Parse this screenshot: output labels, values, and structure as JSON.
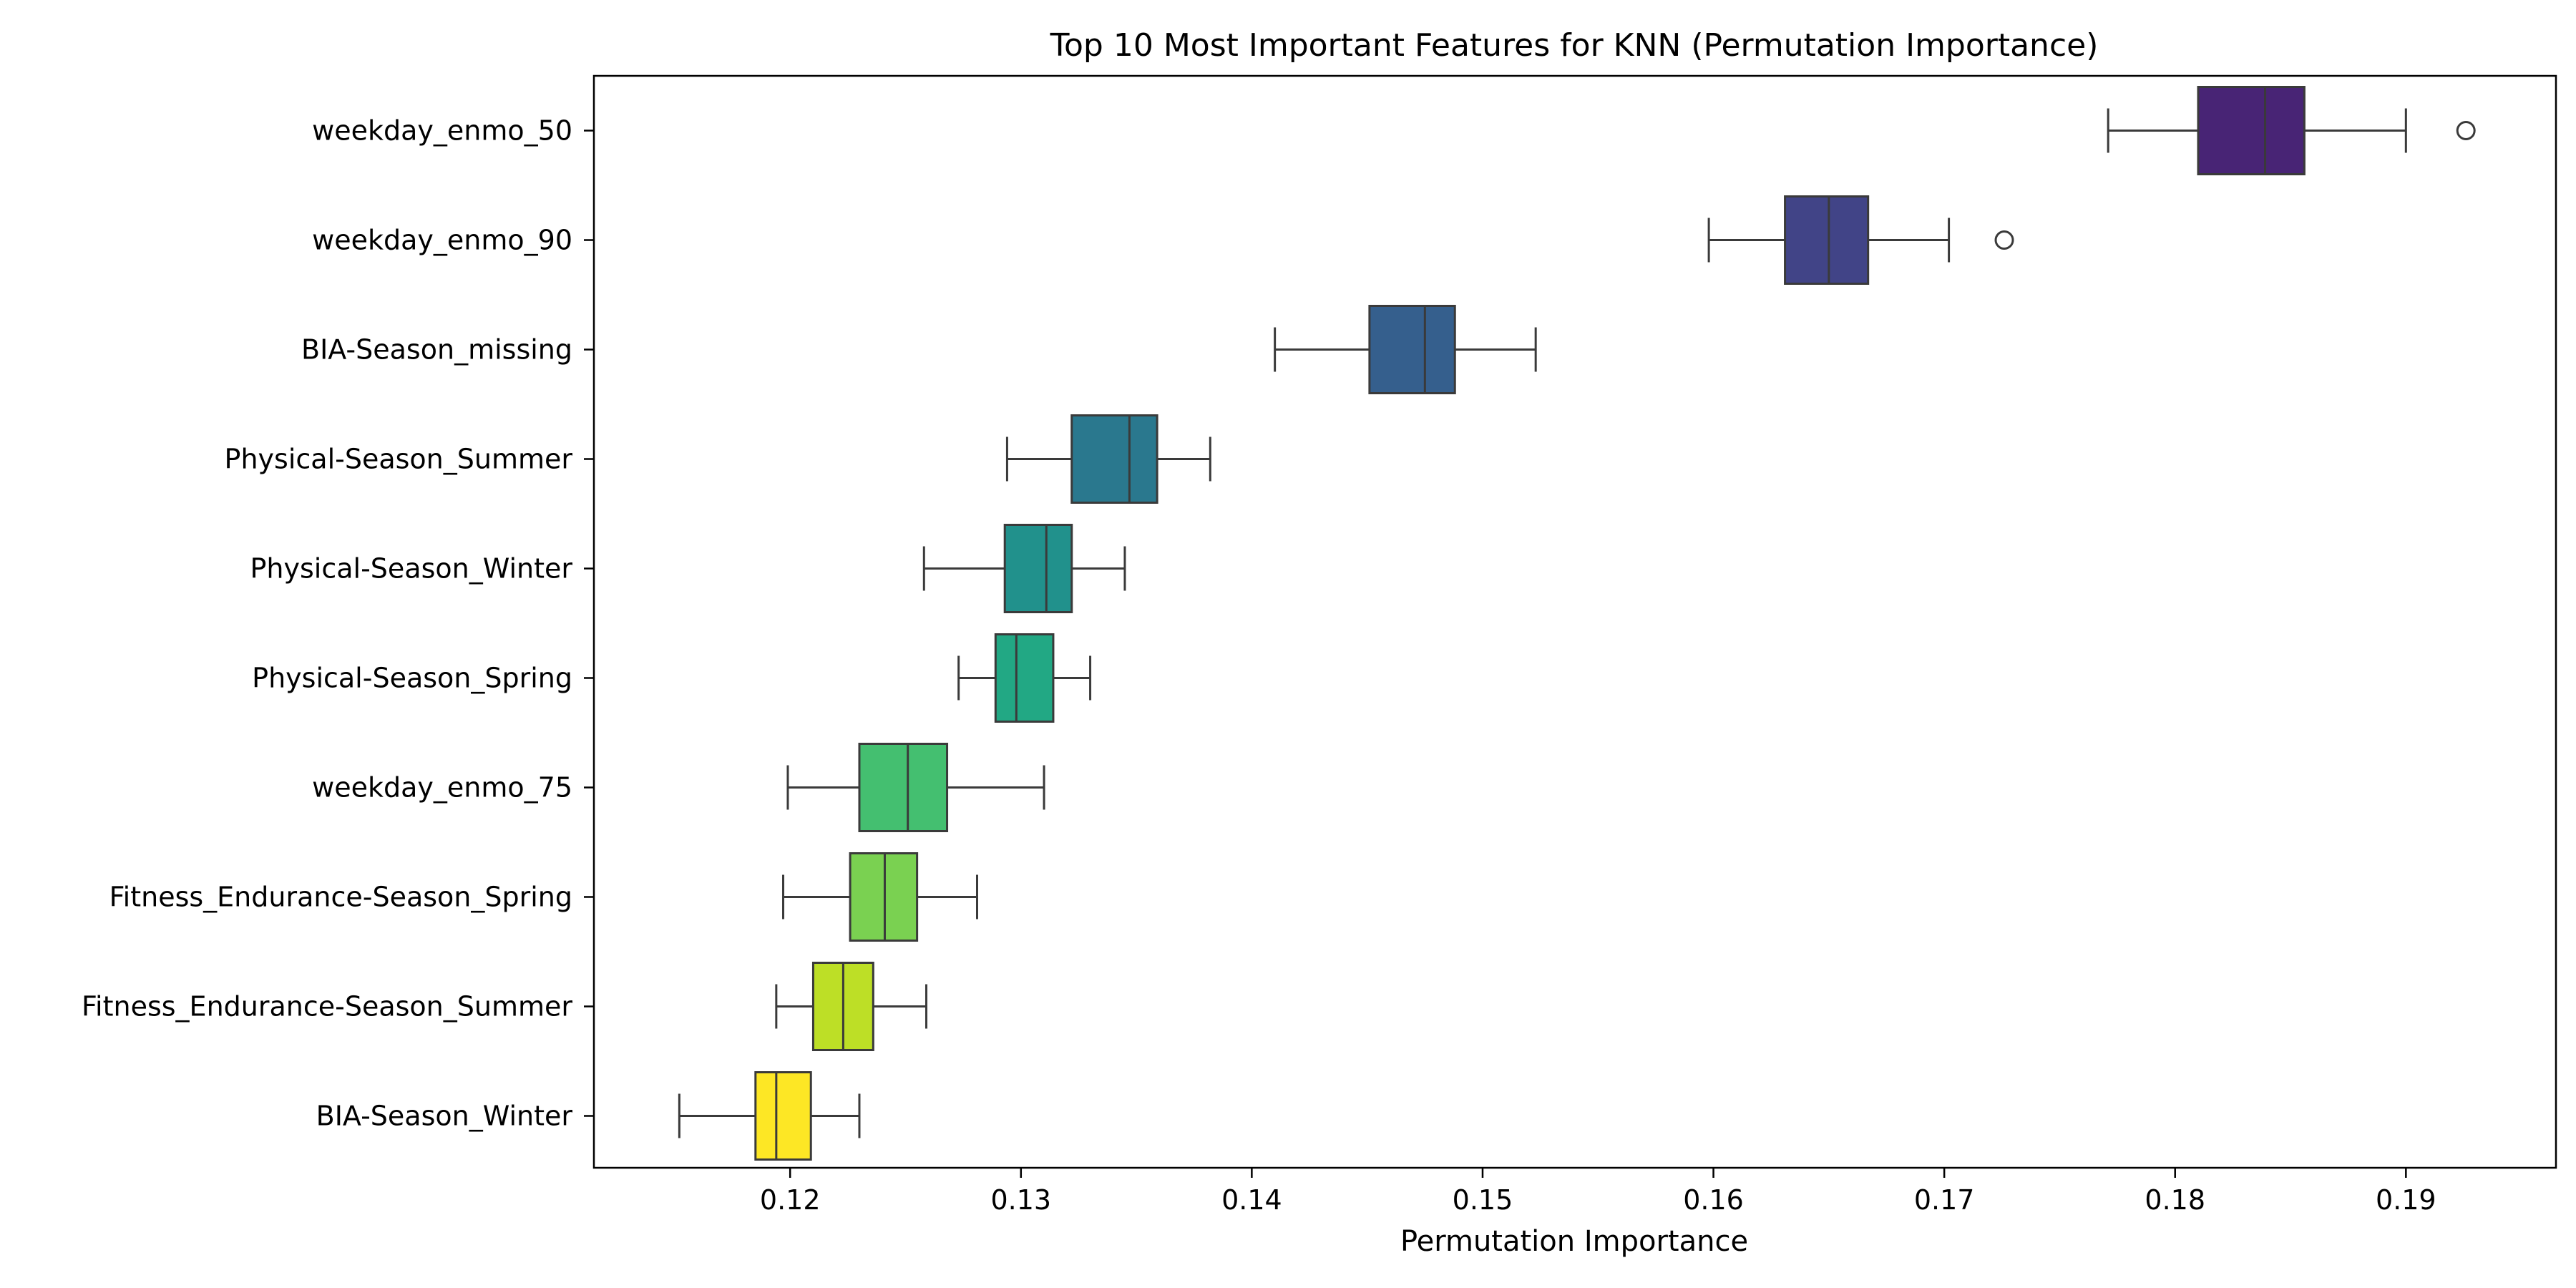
{
  "chart_data": {
    "type": "boxplot",
    "orientation": "horizontal",
    "title": "Top 10 Most Important Features for KNN (Permutation Importance)",
    "xlabel": "Permutation Importance",
    "ylabel": "",
    "xlim": [
      0.1115,
      0.1965
    ],
    "xticks": [
      0.12,
      0.13,
      0.14,
      0.15,
      0.16,
      0.17,
      0.18,
      0.19
    ],
    "xtick_labels": [
      "0.12",
      "0.13",
      "0.14",
      "0.15",
      "0.16",
      "0.17",
      "0.18",
      "0.19"
    ],
    "grid": false,
    "palette": "viridis",
    "features": [
      {
        "name": "weekday_enmo_50",
        "whisker_low": 0.1771,
        "q1": 0.181,
        "median": 0.1839,
        "q3": 0.1856,
        "whisker_high": 0.19,
        "outliers": [
          0.1926
        ],
        "color": "#482475"
      },
      {
        "name": "weekday_enmo_90",
        "whisker_low": 0.1598,
        "q1": 0.1631,
        "median": 0.165,
        "q3": 0.1667,
        "whisker_high": 0.1702,
        "outliers": [
          0.1726
        ],
        "color": "#414487"
      },
      {
        "name": "BIA-Season_missing",
        "whisker_low": 0.141,
        "q1": 0.1451,
        "median": 0.1475,
        "q3": 0.1488,
        "whisker_high": 0.1523,
        "outliers": [],
        "color": "#355f8d"
      },
      {
        "name": "Physical-Season_Summer",
        "whisker_low": 0.1294,
        "q1": 0.1322,
        "median": 0.1347,
        "q3": 0.1359,
        "whisker_high": 0.1382,
        "outliers": [],
        "color": "#2a788e"
      },
      {
        "name": "Physical-Season_Winter",
        "whisker_low": 0.1258,
        "q1": 0.1293,
        "median": 0.1311,
        "q3": 0.1322,
        "whisker_high": 0.1345,
        "outliers": [],
        "color": "#21918c"
      },
      {
        "name": "Physical-Season_Spring",
        "whisker_low": 0.1273,
        "q1": 0.1289,
        "median": 0.1298,
        "q3": 0.1314,
        "whisker_high": 0.133,
        "outliers": [],
        "color": "#22a884"
      },
      {
        "name": "weekday_enmo_75",
        "whisker_low": 0.1199,
        "q1": 0.123,
        "median": 0.1251,
        "q3": 0.1268,
        "whisker_high": 0.131,
        "outliers": [],
        "color": "#44bf70"
      },
      {
        "name": "Fitness_Endurance-Season_Spring",
        "whisker_low": 0.1197,
        "q1": 0.1226,
        "median": 0.1241,
        "q3": 0.1255,
        "whisker_high": 0.1281,
        "outliers": [],
        "color": "#7ad151"
      },
      {
        "name": "Fitness_Endurance-Season_Summer",
        "whisker_low": 0.1194,
        "q1": 0.121,
        "median": 0.1223,
        "q3": 0.1236,
        "whisker_high": 0.1259,
        "outliers": [],
        "color": "#bddf26"
      },
      {
        "name": "BIA-Season_Winter",
        "whisker_low": 0.1152,
        "q1": 0.1185,
        "median": 0.1194,
        "q3": 0.1209,
        "whisker_high": 0.123,
        "outliers": [],
        "color": "#fde725"
      }
    ]
  }
}
